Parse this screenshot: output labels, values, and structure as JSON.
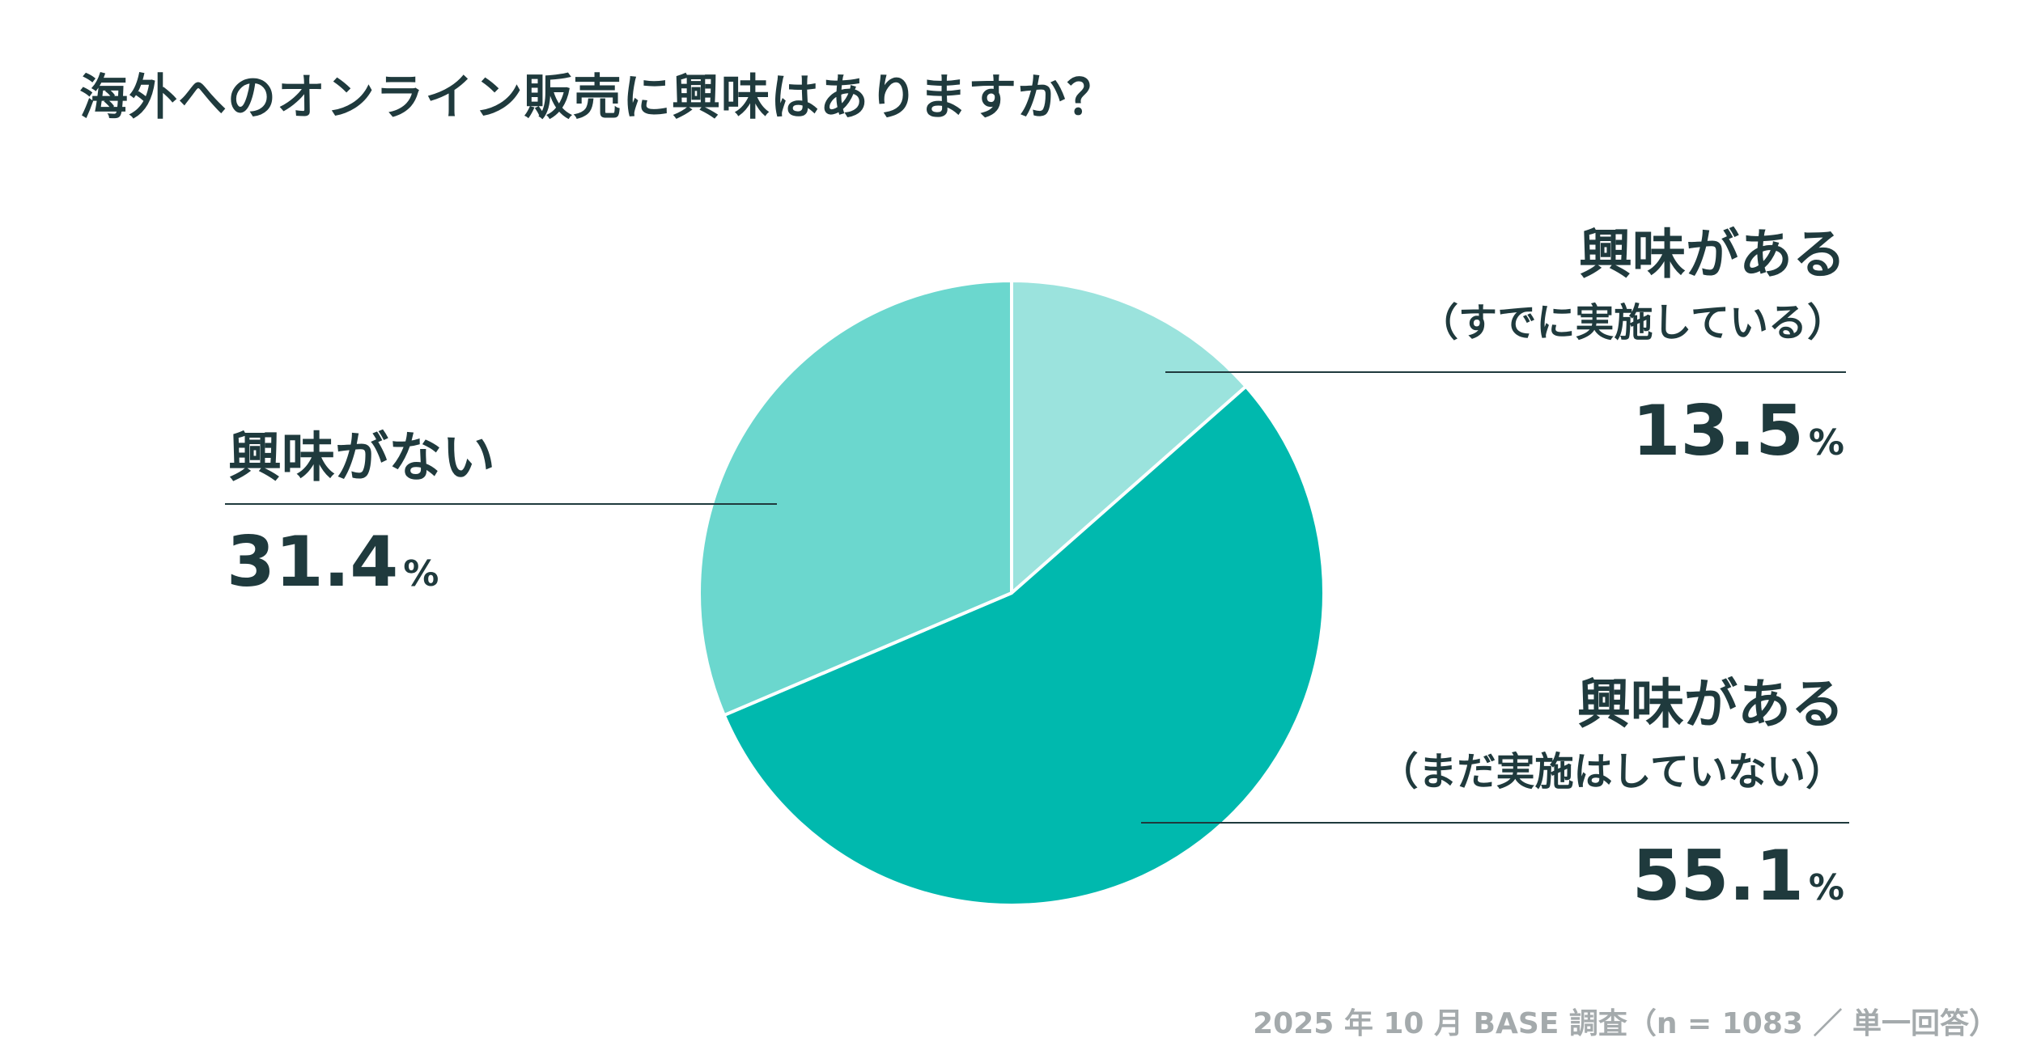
{
  "chart_data": {
    "type": "pie",
    "title": "海外へのオンライン販売に興味はありますか？",
    "slices": [
      {
        "label": "興味がある",
        "sublabel": "（すでに実施している）",
        "value": 13.5,
        "display_value": "13.5",
        "unit": "%",
        "color": "#9be3dd"
      },
      {
        "label": "興味がある",
        "sublabel": "（まだ実施はしていない）",
        "value": 55.1,
        "display_value": "55.1",
        "unit": "%",
        "color": "#00b9ae"
      },
      {
        "label": "興味がない",
        "sublabel": "",
        "value": 31.4,
        "display_value": "31.4",
        "unit": "%",
        "color": "#6bd7ce"
      }
    ],
    "start": "12 o'clock",
    "direction": "clockwise"
  },
  "footer": "2025 年 10 月 BASE 調査（n = 1083 ／ 単一回答）"
}
